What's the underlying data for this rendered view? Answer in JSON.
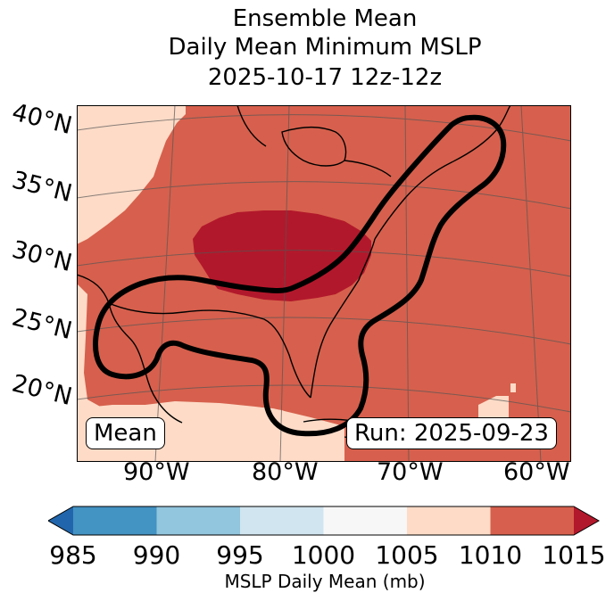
{
  "title": {
    "line1": "Ensemble Mean",
    "line2": "Daily Mean Minimum MSLP",
    "line3": "2025-10-17 12z-12z"
  },
  "latitude_labels": [
    "40°N",
    "35°N",
    "30°N",
    "25°N",
    "20°N"
  ],
  "longitude_labels": [
    "90°W",
    "80°W",
    "70°W",
    "60°W"
  ],
  "badges": {
    "left": "Mean",
    "right": "Run: 2025-09-23"
  },
  "colorbar": {
    "ticks": [
      "985",
      "990",
      "995",
      "1000",
      "1005",
      "1010",
      "1015"
    ],
    "label": "MSLP Daily Mean (mb)",
    "colors": {
      "below": "#2166ac",
      "c985_990": "#4393c3",
      "c990_995": "#92c5de",
      "c995_1000": "#d1e5f0",
      "c1000_1005": "#f7f7f7",
      "c1005_1010": "#fddbc7",
      "c1010_1015": "#d6604d",
      "above": "#b2182b"
    }
  }
}
